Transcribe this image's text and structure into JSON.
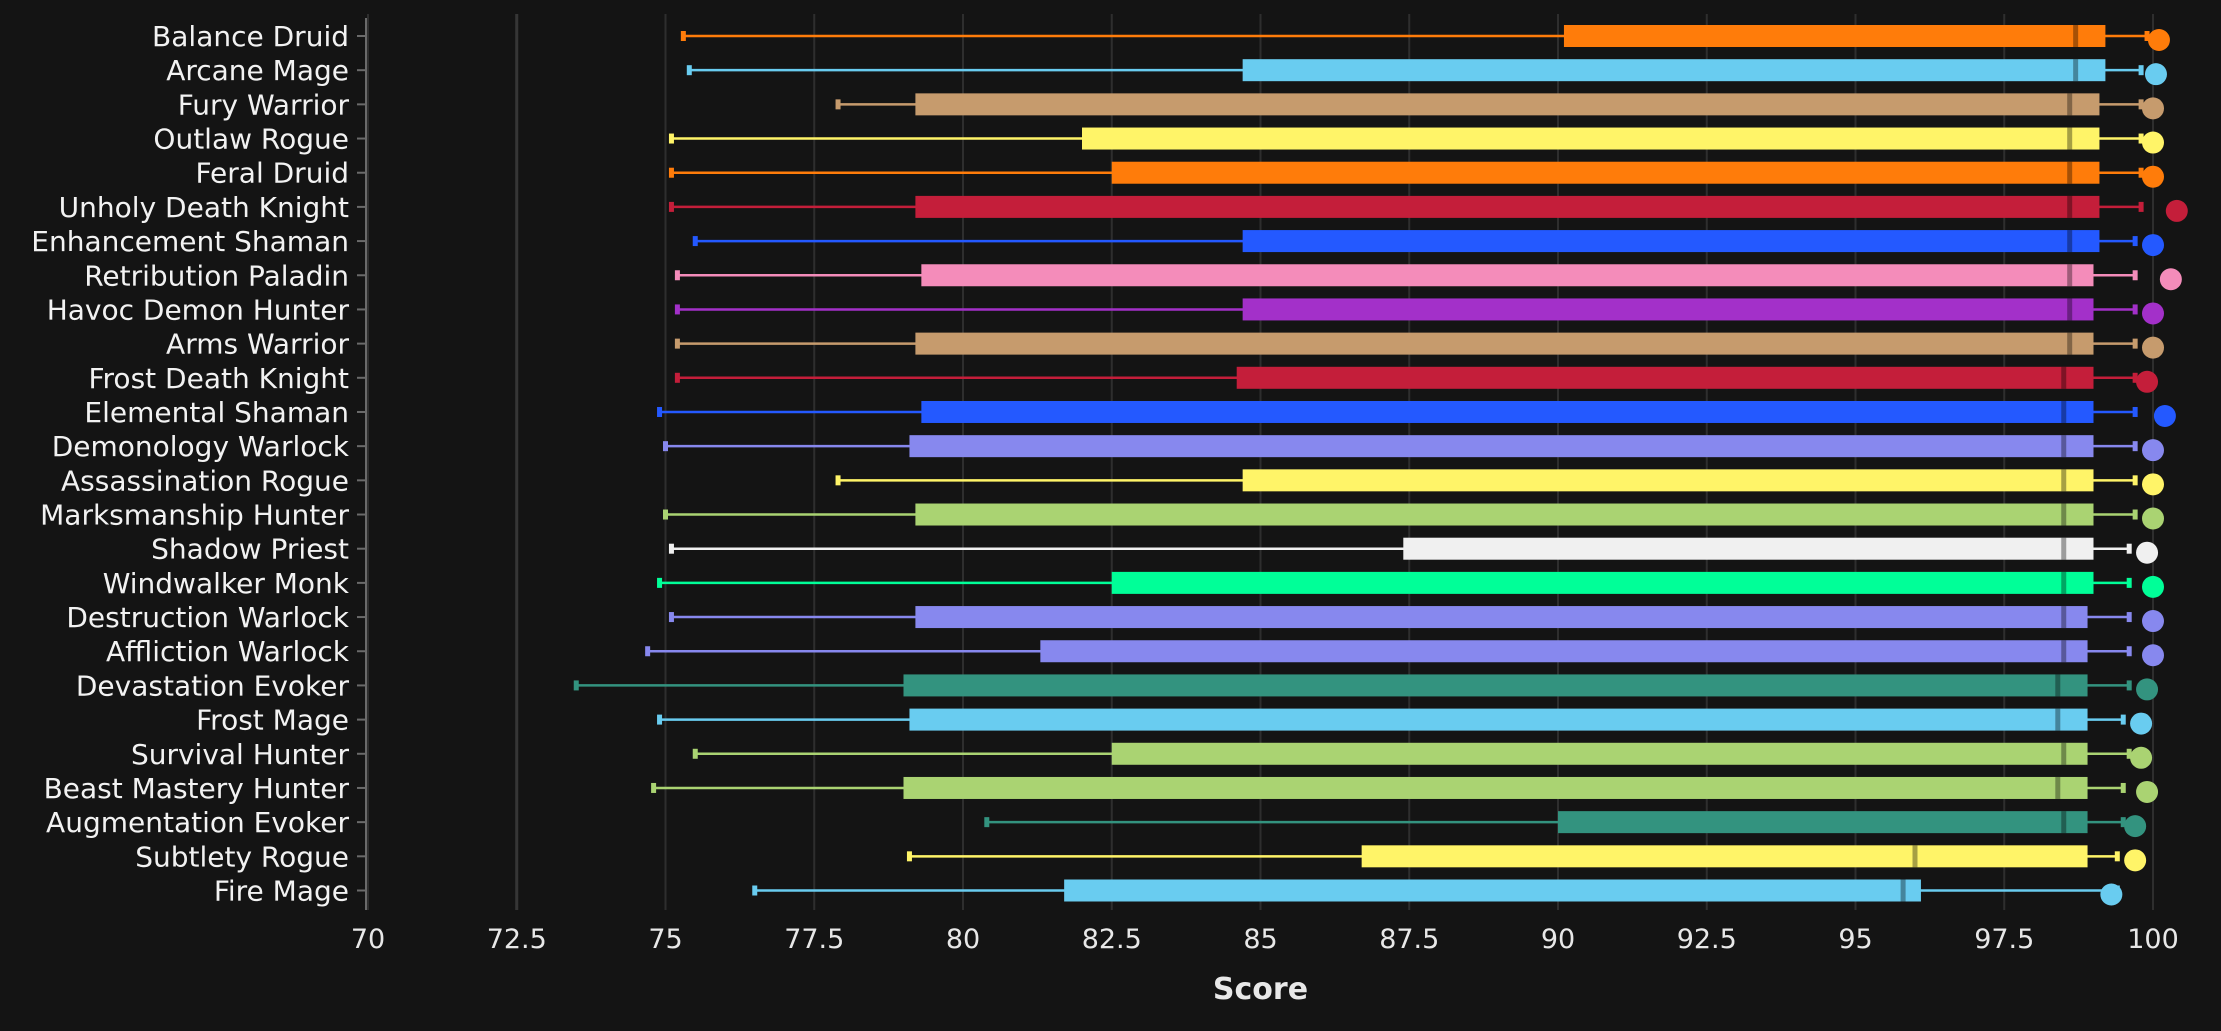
{
  "chart_data": {
    "type": "box",
    "xlabel": "Score",
    "xlim": [
      70,
      100
    ],
    "x_ticks": [
      "70",
      "72.5",
      "75",
      "77.5",
      "80",
      "82.5",
      "85",
      "87.5",
      "90",
      "92.5",
      "95",
      "97.5",
      "100"
    ],
    "grid": "vertical",
    "series": [
      {
        "name": "Balance Druid",
        "color": "#FF7C0A",
        "min": 75.3,
        "q1": 90.1,
        "median": 98.7,
        "q3": 99.2,
        "max": 99.9,
        "top": 100.1
      },
      {
        "name": "Arcane Mage",
        "color": "#69CCF0",
        "min": 75.4,
        "q1": 84.7,
        "median": 98.7,
        "q3": 99.2,
        "max": 99.8,
        "top": 100.05
      },
      {
        "name": "Fury Warrior",
        "color": "#C69B6D",
        "min": 77.9,
        "q1": 79.2,
        "median": 98.6,
        "q3": 99.1,
        "max": 99.8,
        "top": 100.0
      },
      {
        "name": "Outlaw Rogue",
        "color": "#FFF468",
        "min": 75.1,
        "q1": 82.0,
        "median": 98.6,
        "q3": 99.1,
        "max": 99.8,
        "top": 100.0
      },
      {
        "name": "Feral Druid",
        "color": "#FF7C0A",
        "min": 75.1,
        "q1": 82.5,
        "median": 98.6,
        "q3": 99.1,
        "max": 99.8,
        "top": 100.0
      },
      {
        "name": "Unholy Death Knight",
        "color": "#C41E3A",
        "min": 75.1,
        "q1": 79.2,
        "median": 98.6,
        "q3": 99.1,
        "max": 99.8,
        "top": 100.4
      },
      {
        "name": "Enhancement Shaman",
        "color": "#2459FF",
        "min": 75.5,
        "q1": 84.7,
        "median": 98.6,
        "q3": 99.1,
        "max": 99.7,
        "top": 100.0
      },
      {
        "name": "Retribution Paladin",
        "color": "#F48CBA",
        "min": 75.2,
        "q1": 79.3,
        "median": 98.6,
        "q3": 99.0,
        "max": 99.7,
        "top": 100.3
      },
      {
        "name": "Havoc Demon Hunter",
        "color": "#A330C9",
        "min": 75.2,
        "q1": 84.7,
        "median": 98.6,
        "q3": 99.0,
        "max": 99.7,
        "top": 100.0
      },
      {
        "name": "Arms Warrior",
        "color": "#C69B6D",
        "min": 75.2,
        "q1": 79.2,
        "median": 98.6,
        "q3": 99.0,
        "max": 99.7,
        "top": 100.0
      },
      {
        "name": "Frost Death Knight",
        "color": "#C41E3A",
        "min": 75.2,
        "q1": 84.6,
        "median": 98.5,
        "q3": 99.0,
        "max": 99.7,
        "top": 99.9
      },
      {
        "name": "Elemental Shaman",
        "color": "#2459FF",
        "min": 74.9,
        "q1": 79.3,
        "median": 98.5,
        "q3": 99.0,
        "max": 99.7,
        "top": 100.2
      },
      {
        "name": "Demonology Warlock",
        "color": "#8788EE",
        "min": 75.0,
        "q1": 79.1,
        "median": 98.5,
        "q3": 99.0,
        "max": 99.7,
        "top": 100.0
      },
      {
        "name": "Assassination Rogue",
        "color": "#FFF468",
        "min": 77.9,
        "q1": 84.7,
        "median": 98.5,
        "q3": 99.0,
        "max": 99.7,
        "top": 100.0
      },
      {
        "name": "Marksmanship Hunter",
        "color": "#AAD372",
        "min": 75.0,
        "q1": 79.2,
        "median": 98.5,
        "q3": 99.0,
        "max": 99.7,
        "top": 100.0
      },
      {
        "name": "Shadow Priest",
        "color": "#F0F0F0",
        "min": 75.1,
        "q1": 87.4,
        "median": 98.5,
        "q3": 99.0,
        "max": 99.6,
        "top": 99.9
      },
      {
        "name": "Windwalker Monk",
        "color": "#00FF98",
        "min": 74.9,
        "q1": 82.5,
        "median": 98.5,
        "q3": 99.0,
        "max": 99.6,
        "top": 100.0
      },
      {
        "name": "Destruction Warlock",
        "color": "#8788EE",
        "min": 75.1,
        "q1": 79.2,
        "median": 98.5,
        "q3": 98.9,
        "max": 99.6,
        "top": 100.0
      },
      {
        "name": "Affliction Warlock",
        "color": "#8788EE",
        "min": 74.7,
        "q1": 81.3,
        "median": 98.5,
        "q3": 98.9,
        "max": 99.6,
        "top": 100.0
      },
      {
        "name": "Devastation Evoker",
        "color": "#33937F",
        "min": 73.5,
        "q1": 79.0,
        "median": 98.4,
        "q3": 98.9,
        "max": 99.6,
        "top": 99.9
      },
      {
        "name": "Frost Mage",
        "color": "#69CCF0",
        "min": 74.9,
        "q1": 79.1,
        "median": 98.4,
        "q3": 98.9,
        "max": 99.5,
        "top": 99.8
      },
      {
        "name": "Survival Hunter",
        "color": "#AAD372",
        "min": 75.5,
        "q1": 82.5,
        "median": 98.5,
        "q3": 98.9,
        "max": 99.6,
        "top": 99.8
      },
      {
        "name": "Beast Mastery Hunter",
        "color": "#AAD372",
        "min": 74.8,
        "q1": 79.0,
        "median": 98.4,
        "q3": 98.9,
        "max": 99.5,
        "top": 99.9
      },
      {
        "name": "Augmentation Evoker",
        "color": "#33937F",
        "min": 80.4,
        "q1": 90.0,
        "median": 98.5,
        "q3": 98.9,
        "max": 99.5,
        "top": 99.7
      },
      {
        "name": "Subtlety Rogue",
        "color": "#FFF468",
        "min": 79.1,
        "q1": 86.7,
        "median": 96.0,
        "q3": 98.9,
        "max": 99.4,
        "top": 99.7
      },
      {
        "name": "Fire Mage",
        "color": "#69CCF0",
        "min": 76.5,
        "q1": 81.7,
        "median": 95.8,
        "q3": 96.1,
        "max": 99.4,
        "top": 99.3
      }
    ]
  }
}
